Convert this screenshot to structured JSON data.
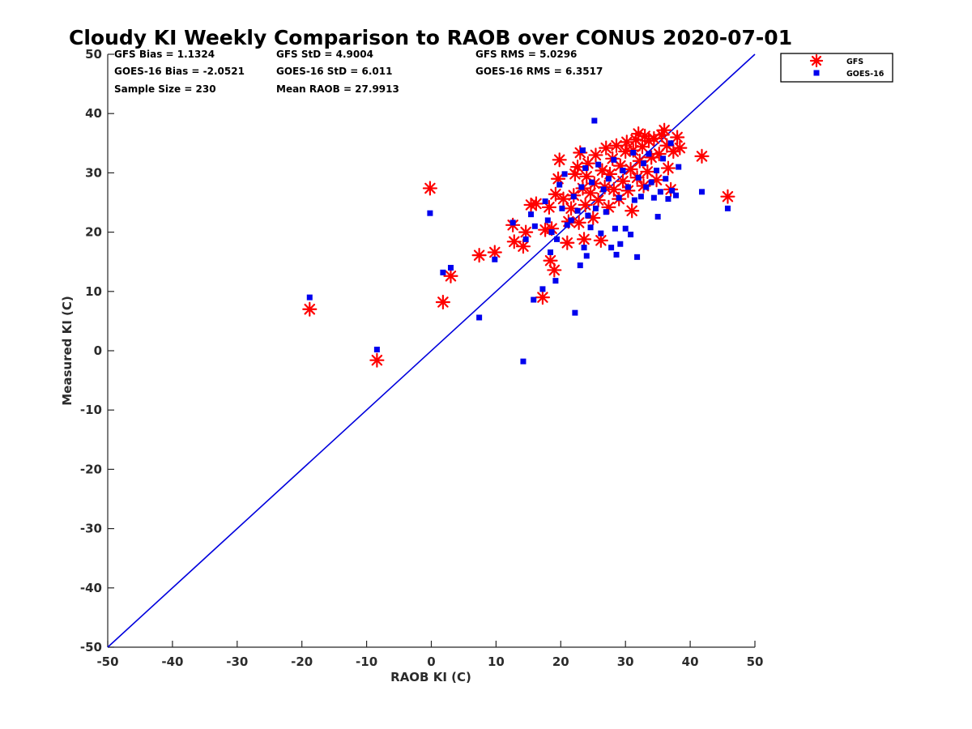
{
  "chart_data": {
    "type": "scatter",
    "title": "Cloudy KI Weekly Comparison to RAOB over CONUS 2020-07-01",
    "xlabel": "RAOB KI (C)",
    "ylabel": "Measured KI (C)",
    "xlim": [
      -50,
      50
    ],
    "ylim": [
      -50,
      50
    ],
    "xticks": [
      "-50",
      "-40",
      "-30",
      "-20",
      "-10",
      "0",
      "10",
      "20",
      "30",
      "40",
      "50"
    ],
    "yticks": [
      "-50",
      "-40",
      "-30",
      "-20",
      "-10",
      "0",
      "10",
      "20",
      "30",
      "40",
      "50"
    ],
    "grid": false,
    "legend_position": "top-right",
    "reference_line": {
      "label": "1:1 line",
      "from": [
        -50,
        -50
      ],
      "to": [
        50,
        50
      ],
      "color": "#0000dd"
    },
    "stats": {
      "gfs_bias": "GFS Bias = 1.1324",
      "gfs_std": "GFS StD = 4.9004",
      "gfs_rms": "GFS RMS = 5.0296",
      "goes_bias": "GOES-16 Bias = -2.0521",
      "goes_std": "GOES-16 StD = 6.011",
      "goes_rms": "GOES-16 RMS = 6.3517",
      "sample_size": "Sample Size = 230",
      "mean_raob": "Mean RAOB = 27.9913"
    },
    "series": [
      {
        "name": "GFS",
        "marker": "asterisk",
        "color": "#ff0000",
        "points": [
          [
            -18.8,
            7.0
          ],
          [
            -8.4,
            -1.6
          ],
          [
            -0.2,
            27.4
          ],
          [
            1.8,
            8.2
          ],
          [
            3.0,
            12.6
          ],
          [
            7.4,
            16.1
          ],
          [
            9.8,
            16.6
          ],
          [
            12.6,
            21.2
          ],
          [
            12.8,
            18.4
          ],
          [
            14.2,
            17.6
          ],
          [
            14.6,
            20.0
          ],
          [
            15.4,
            24.6
          ],
          [
            16.2,
            24.8
          ],
          [
            17.2,
            9.0
          ],
          [
            17.6,
            20.4
          ],
          [
            18.2,
            24.2
          ],
          [
            18.4,
            15.2
          ],
          [
            18.6,
            20.6
          ],
          [
            19.0,
            13.6
          ],
          [
            19.2,
            26.4
          ],
          [
            19.6,
            29.0
          ],
          [
            19.8,
            32.2
          ],
          [
            20.4,
            25.6
          ],
          [
            21.0,
            18.2
          ],
          [
            21.2,
            21.8
          ],
          [
            21.6,
            24.0
          ],
          [
            22.0,
            26.2
          ],
          [
            22.2,
            29.8
          ],
          [
            22.6,
            31.0
          ],
          [
            22.8,
            21.6
          ],
          [
            23.0,
            33.4
          ],
          [
            23.4,
            27.4
          ],
          [
            23.6,
            18.8
          ],
          [
            23.8,
            24.6
          ],
          [
            24.0,
            29.4
          ],
          [
            24.2,
            31.6
          ],
          [
            24.6,
            26.6
          ],
          [
            25.0,
            22.4
          ],
          [
            25.2,
            28.2
          ],
          [
            25.4,
            33.0
          ],
          [
            25.8,
            25.4
          ],
          [
            26.2,
            18.6
          ],
          [
            26.4,
            30.4
          ],
          [
            26.8,
            27.6
          ],
          [
            27.0,
            34.2
          ],
          [
            27.4,
            24.2
          ],
          [
            27.6,
            29.8
          ],
          [
            28.0,
            32.4
          ],
          [
            28.2,
            27.2
          ],
          [
            28.6,
            34.6
          ],
          [
            29.0,
            25.6
          ],
          [
            29.2,
            31.2
          ],
          [
            29.6,
            28.6
          ],
          [
            30.0,
            33.6
          ],
          [
            30.2,
            35.2
          ],
          [
            30.4,
            27.0
          ],
          [
            30.8,
            30.6
          ],
          [
            31.0,
            23.6
          ],
          [
            31.2,
            33.8
          ],
          [
            31.6,
            35.6
          ],
          [
            31.8,
            29.2
          ],
          [
            32.0,
            36.6
          ],
          [
            32.2,
            32.0
          ],
          [
            32.6,
            34.4
          ],
          [
            32.8,
            27.8
          ],
          [
            33.0,
            36.2
          ],
          [
            33.4,
            30.2
          ],
          [
            33.6,
            35.4
          ],
          [
            34.0,
            32.6
          ],
          [
            34.4,
            35.8
          ],
          [
            34.8,
            28.8
          ],
          [
            35.2,
            33.2
          ],
          [
            35.6,
            36.4
          ],
          [
            36.0,
            37.2
          ],
          [
            36.4,
            34.6
          ],
          [
            36.6,
            30.8
          ],
          [
            37.0,
            27.2
          ],
          [
            37.4,
            33.6
          ],
          [
            38.0,
            36.0
          ],
          [
            38.4,
            34.2
          ],
          [
            41.8,
            32.8
          ],
          [
            45.8,
            26.0
          ]
        ]
      },
      {
        "name": "GOES-16",
        "marker": "square",
        "color": "#0000ee",
        "points": [
          [
            -18.8,
            9.0
          ],
          [
            -8.4,
            0.2
          ],
          [
            -0.2,
            23.2
          ],
          [
            1.8,
            13.2
          ],
          [
            3.0,
            14.0
          ],
          [
            7.4,
            5.6
          ],
          [
            9.8,
            15.4
          ],
          [
            12.6,
            21.6
          ],
          [
            14.2,
            -1.8
          ],
          [
            14.6,
            18.8
          ],
          [
            15.4,
            23.0
          ],
          [
            15.8,
            8.6
          ],
          [
            16.0,
            21.0
          ],
          [
            17.2,
            10.4
          ],
          [
            17.6,
            25.2
          ],
          [
            18.0,
            22.0
          ],
          [
            18.4,
            16.6
          ],
          [
            18.6,
            20.0
          ],
          [
            19.2,
            11.8
          ],
          [
            19.4,
            18.8
          ],
          [
            19.8,
            28.0
          ],
          [
            20.2,
            24.0
          ],
          [
            20.6,
            29.8
          ],
          [
            21.0,
            21.2
          ],
          [
            21.6,
            22.0
          ],
          [
            22.0,
            26.0
          ],
          [
            22.2,
            6.4
          ],
          [
            22.6,
            23.6
          ],
          [
            23.0,
            14.4
          ],
          [
            23.2,
            27.6
          ],
          [
            23.4,
            33.8
          ],
          [
            23.6,
            17.4
          ],
          [
            23.8,
            30.8
          ],
          [
            24.0,
            16.0
          ],
          [
            24.2,
            22.8
          ],
          [
            24.6,
            20.8
          ],
          [
            24.8,
            28.4
          ],
          [
            25.2,
            38.8
          ],
          [
            25.4,
            24.0
          ],
          [
            25.8,
            31.4
          ],
          [
            26.2,
            19.8
          ],
          [
            26.6,
            27.2
          ],
          [
            27.0,
            23.4
          ],
          [
            27.4,
            29.0
          ],
          [
            27.8,
            17.4
          ],
          [
            28.2,
            32.2
          ],
          [
            28.4,
            20.6
          ],
          [
            28.6,
            16.2
          ],
          [
            29.0,
            25.8
          ],
          [
            29.2,
            18.0
          ],
          [
            29.6,
            30.4
          ],
          [
            30.0,
            20.6
          ],
          [
            30.4,
            27.6
          ],
          [
            30.8,
            19.6
          ],
          [
            31.2,
            33.4
          ],
          [
            31.4,
            25.4
          ],
          [
            31.8,
            15.8
          ],
          [
            32.0,
            29.2
          ],
          [
            32.4,
            26.0
          ],
          [
            32.8,
            31.6
          ],
          [
            33.2,
            27.6
          ],
          [
            33.6,
            33.2
          ],
          [
            34.0,
            28.4
          ],
          [
            34.4,
            25.8
          ],
          [
            34.8,
            30.4
          ],
          [
            35.0,
            22.6
          ],
          [
            35.4,
            26.8
          ],
          [
            35.8,
            32.4
          ],
          [
            36.2,
            29.0
          ],
          [
            36.6,
            25.6
          ],
          [
            37.0,
            35.0
          ],
          [
            37.2,
            27.0
          ],
          [
            37.8,
            26.2
          ],
          [
            38.2,
            31.0
          ],
          [
            41.8,
            26.8
          ],
          [
            45.8,
            24.0
          ]
        ]
      }
    ]
  }
}
